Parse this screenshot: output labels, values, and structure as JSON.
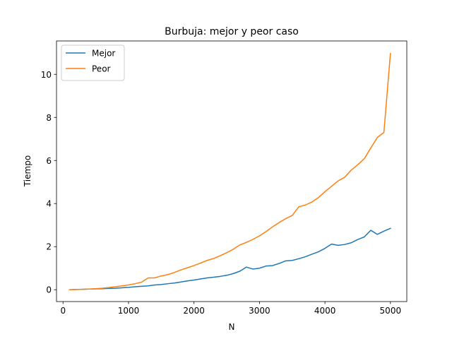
{
  "chart_data": {
    "type": "line",
    "title": "Burbuja: mejor y peor caso",
    "xlabel": "N",
    "ylabel": "Tiempo",
    "xlim": [
      -100,
      5250
    ],
    "ylim": [
      -0.55,
      11.55
    ],
    "xticks": [
      0,
      1000,
      2000,
      3000,
      4000,
      5000
    ],
    "yticks": [
      0,
      2,
      4,
      6,
      8,
      10
    ],
    "grid": false,
    "legend_position": "top-left",
    "x": [
      100,
      200,
      300,
      400,
      500,
      600,
      700,
      800,
      900,
      1000,
      1100,
      1200,
      1300,
      1400,
      1500,
      1600,
      1700,
      1800,
      1900,
      2000,
      2100,
      2200,
      2300,
      2400,
      2500,
      2600,
      2700,
      2800,
      2900,
      3000,
      3100,
      3200,
      3300,
      3400,
      3500,
      3600,
      3700,
      3800,
      3900,
      4000,
      4100,
      4200,
      4300,
      4400,
      4500,
      4600,
      4700,
      4800,
      4900,
      5000
    ],
    "series": [
      {
        "name": "Mejor",
        "color": "#1f77b4",
        "values": [
          0.0,
          0.01,
          0.02,
          0.03,
          0.04,
          0.05,
          0.06,
          0.07,
          0.09,
          0.11,
          0.14,
          0.16,
          0.18,
          0.22,
          0.24,
          0.28,
          0.31,
          0.36,
          0.41,
          0.45,
          0.5,
          0.55,
          0.58,
          0.62,
          0.67,
          0.75,
          0.86,
          1.05,
          0.96,
          1.0,
          1.1,
          1.12,
          1.22,
          1.34,
          1.36,
          1.44,
          1.53,
          1.65,
          1.76,
          1.92,
          2.12,
          2.06,
          2.1,
          2.18,
          2.33,
          2.45,
          2.76,
          2.57,
          2.72,
          2.85
        ]
      },
      {
        "name": "Peor",
        "color": "#ff7f0e",
        "values": [
          0.0,
          0.01,
          0.02,
          0.03,
          0.05,
          0.07,
          0.1,
          0.14,
          0.18,
          0.22,
          0.28,
          0.35,
          0.55,
          0.55,
          0.64,
          0.7,
          0.8,
          0.92,
          1.02,
          1.12,
          1.24,
          1.36,
          1.45,
          1.58,
          1.72,
          1.88,
          2.08,
          2.2,
          2.34,
          2.5,
          2.7,
          2.92,
          3.12,
          3.3,
          3.45,
          3.85,
          3.93,
          4.07,
          4.28,
          4.55,
          4.8,
          5.05,
          5.22,
          5.55,
          5.8,
          6.08,
          6.58,
          7.07,
          7.3,
          10.97
        ]
      }
    ]
  }
}
